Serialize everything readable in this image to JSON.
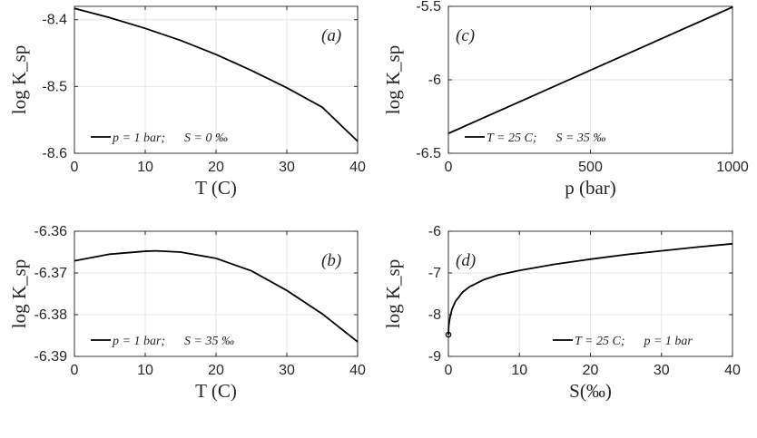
{
  "chart_data": [
    {
      "type": "line",
      "panel_tag": "(a)",
      "xlabel": "T (C)",
      "ylabel": "log K_sp",
      "xlim": [
        0,
        40
      ],
      "ylim": [
        -8.6,
        -8.38
      ],
      "xticks": [
        "0",
        "10",
        "20",
        "30",
        "40"
      ],
      "yticks": [
        "-8.4",
        "-8.5",
        "-8.6"
      ],
      "ytick_values": [
        -8.4,
        -8.5,
        -8.6
      ],
      "xtick_values": [
        0,
        10,
        20,
        30,
        40
      ],
      "grid": true,
      "legend": "p = 1 bar;    S = 0 ‰",
      "legend_position": "bottom-left",
      "series": [
        {
          "x": [
            0,
            5,
            10,
            15,
            20,
            25,
            30,
            35,
            40
          ],
          "y": [
            -8.383,
            -8.397,
            -8.413,
            -8.431,
            -8.452,
            -8.476,
            -8.502,
            -8.531,
            -8.582
          ]
        }
      ]
    },
    {
      "type": "line",
      "panel_tag": "(c)",
      "xlabel": "p (bar)",
      "ylabel": "log K_sp",
      "xlim": [
        0,
        1000
      ],
      "ylim": [
        -6.5,
        -5.5
      ],
      "xticks": [
        "0",
        "500",
        "1000"
      ],
      "yticks": [
        "-5.5",
        "-6",
        "-6.5"
      ],
      "ytick_values": [
        -5.5,
        -6,
        -6.5
      ],
      "xtick_values": [
        0,
        500,
        1000
      ],
      "grid": true,
      "legend": "T = 25 C;    S = 35 ‰",
      "legend_position": "bottom-left",
      "series": [
        {
          "x": [
            0,
            250,
            500,
            750,
            1000
          ],
          "y": [
            -6.365,
            -6.15,
            -5.935,
            -5.72,
            -5.505
          ]
        }
      ]
    },
    {
      "type": "line",
      "panel_tag": "(b)",
      "xlabel": "T (C)",
      "ylabel": "log K_sp",
      "xlim": [
        0,
        40
      ],
      "ylim": [
        -6.39,
        -6.36
      ],
      "xticks": [
        "0",
        "10",
        "20",
        "30",
        "40"
      ],
      "yticks": [
        "-6.36",
        "-6.37",
        "-6.38",
        "-6.39"
      ],
      "ytick_values": [
        -6.36,
        -6.37,
        -6.38,
        -6.39
      ],
      "xtick_values": [
        0,
        10,
        20,
        30,
        40
      ],
      "grid": true,
      "legend": "p = 1 bar;    S = 35 ‰",
      "legend_position": "bottom-left",
      "series": [
        {
          "x": [
            0,
            5,
            10,
            11.5,
            15,
            20,
            25,
            30,
            35,
            40
          ],
          "y": [
            -6.3671,
            -6.3655,
            -6.3648,
            -6.3647,
            -6.365,
            -6.3665,
            -6.3695,
            -6.3742,
            -6.3798,
            -6.3865
          ]
        }
      ]
    },
    {
      "type": "line",
      "panel_tag": "(d)",
      "xlabel": "S(‰)",
      "ylabel": "log K_sp",
      "xlim": [
        0,
        40
      ],
      "ylim": [
        -9,
        -6
      ],
      "xticks": [
        "0",
        "10",
        "20",
        "30",
        "40"
      ],
      "yticks": [
        "-6",
        "-7",
        "-8",
        "-9"
      ],
      "ytick_values": [
        -6,
        -7,
        -8,
        -9
      ],
      "xtick_values": [
        0,
        10,
        20,
        30,
        40
      ],
      "grid": true,
      "legend": "T = 25 C;    p = 1 bar",
      "legend_position": "bottom-right",
      "marker_point": [
        0,
        -8.48
      ],
      "series": [
        {
          "x": [
            0,
            0.05,
            0.2,
            0.5,
            1,
            2,
            3,
            5,
            7,
            10,
            15,
            20,
            25,
            30,
            35,
            40
          ],
          "y": [
            -8.48,
            -8.26,
            -8.09,
            -7.87,
            -7.68,
            -7.46,
            -7.33,
            -7.16,
            -7.05,
            -6.94,
            -6.79,
            -6.67,
            -6.56,
            -6.47,
            -6.38,
            -6.3
          ]
        }
      ]
    }
  ]
}
